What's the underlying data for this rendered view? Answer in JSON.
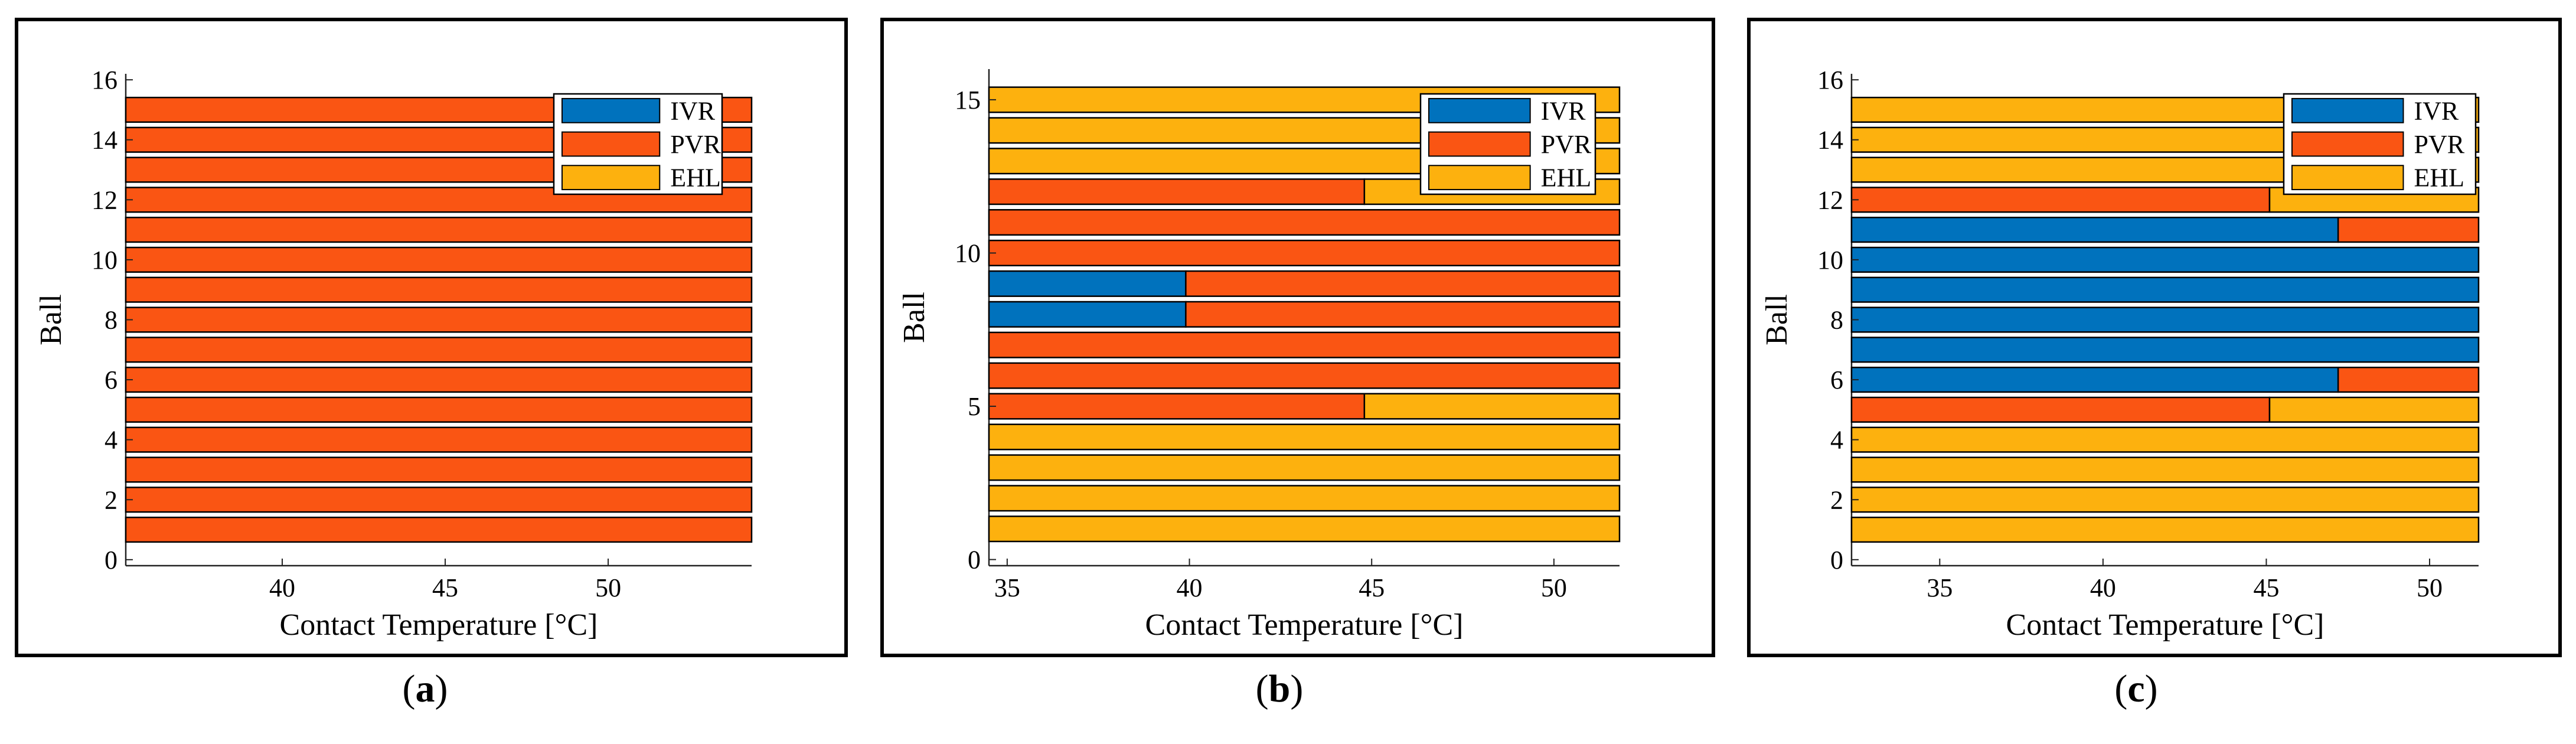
{
  "colors": {
    "IVR": "#0072BD",
    "PVR": "#FA5513",
    "EHL": "#FDB10E",
    "frame": "#000000",
    "background": "#ffffff"
  },
  "chart_data": [
    {
      "type": "bar",
      "orientation": "horizontal-stacked",
      "caption_open": "(",
      "caption_letter": "a",
      "caption_close": ")",
      "xlabel": "Contact Temperature [°C]",
      "ylabel": "Ball",
      "xlim": [
        35.2,
        54.4
      ],
      "ylim": [
        -0.2,
        16.2
      ],
      "xticks": [
        40,
        45,
        50
      ],
      "yticks": [
        0,
        2,
        4,
        6,
        8,
        10,
        12,
        14,
        16
      ],
      "legend": [
        "IVR",
        "PVR",
        "EHL"
      ],
      "legend_position": "top-right",
      "balls": [
        {
          "ball": 1,
          "IVR": 0,
          "PVR": 19.2,
          "EHL": 0
        },
        {
          "ball": 2,
          "IVR": 0,
          "PVR": 19.2,
          "EHL": 0
        },
        {
          "ball": 3,
          "IVR": 0,
          "PVR": 19.2,
          "EHL": 0
        },
        {
          "ball": 4,
          "IVR": 0,
          "PVR": 19.2,
          "EHL": 0
        },
        {
          "ball": 5,
          "IVR": 0,
          "PVR": 19.2,
          "EHL": 0
        },
        {
          "ball": 6,
          "IVR": 0,
          "PVR": 19.2,
          "EHL": 0
        },
        {
          "ball": 7,
          "IVR": 0,
          "PVR": 19.2,
          "EHL": 0
        },
        {
          "ball": 8,
          "IVR": 0,
          "PVR": 19.2,
          "EHL": 0
        },
        {
          "ball": 9,
          "IVR": 0,
          "PVR": 19.2,
          "EHL": 0
        },
        {
          "ball": 10,
          "IVR": 0,
          "PVR": 19.2,
          "EHL": 0
        },
        {
          "ball": 11,
          "IVR": 0,
          "PVR": 19.2,
          "EHL": 0
        },
        {
          "ball": 12,
          "IVR": 0,
          "PVR": 19.2,
          "EHL": 0
        },
        {
          "ball": 13,
          "IVR": 0,
          "PVR": 19.2,
          "EHL": 0
        },
        {
          "ball": 14,
          "IVR": 0,
          "PVR": 19.2,
          "EHL": 0
        },
        {
          "ball": 15,
          "IVR": 0,
          "PVR": 19.2,
          "EHL": 0
        }
      ]
    },
    {
      "type": "bar",
      "orientation": "horizontal-stacked",
      "caption_open": "(",
      "caption_letter": "b",
      "caption_close": ")",
      "xlabel": "Contact Temperature [°C]",
      "ylabel": "Ball",
      "xlim": [
        34.5,
        51.8
      ],
      "ylim": [
        -0.2,
        16.0
      ],
      "xticks": [
        35,
        40,
        45,
        50
      ],
      "yticks": [
        0,
        5,
        10,
        15
      ],
      "legend": [
        "IVR",
        "PVR",
        "EHL"
      ],
      "legend_position": "top-right",
      "balls": [
        {
          "ball": 1,
          "IVR": 0,
          "PVR": 0,
          "EHL": 17.3
        },
        {
          "ball": 2,
          "IVR": 0,
          "PVR": 0,
          "EHL": 17.3
        },
        {
          "ball": 3,
          "IVR": 0,
          "PVR": 0,
          "EHL": 17.3
        },
        {
          "ball": 4,
          "IVR": 0,
          "PVR": 0,
          "EHL": 17.3
        },
        {
          "ball": 5,
          "IVR": 0,
          "PVR": 10.3,
          "EHL": 7.0
        },
        {
          "ball": 6,
          "IVR": 0,
          "PVR": 17.3,
          "EHL": 0
        },
        {
          "ball": 7,
          "IVR": 0,
          "PVR": 17.3,
          "EHL": 0
        },
        {
          "ball": 8,
          "IVR": 5.4,
          "PVR": 11.9,
          "EHL": 0
        },
        {
          "ball": 9,
          "IVR": 5.4,
          "PVR": 11.9,
          "EHL": 0
        },
        {
          "ball": 10,
          "IVR": 0,
          "PVR": 17.3,
          "EHL": 0
        },
        {
          "ball": 11,
          "IVR": 0,
          "PVR": 17.3,
          "EHL": 0
        },
        {
          "ball": 12,
          "IVR": 0,
          "PVR": 10.3,
          "EHL": 7.0
        },
        {
          "ball": 13,
          "IVR": 0,
          "PVR": 0,
          "EHL": 17.3
        },
        {
          "ball": 14,
          "IVR": 0,
          "PVR": 0,
          "EHL": 17.3
        },
        {
          "ball": 15,
          "IVR": 0,
          "PVR": 0,
          "EHL": 17.3
        }
      ]
    },
    {
      "type": "bar",
      "orientation": "horizontal-stacked",
      "caption_open": "(",
      "caption_letter": "c",
      "caption_close": ")",
      "xlabel": "Contact Temperature [°C]",
      "ylabel": "Ball",
      "xlim": [
        32.3,
        51.5
      ],
      "ylim": [
        -0.2,
        16.2
      ],
      "xticks": [
        35,
        40,
        45,
        50
      ],
      "yticks": [
        0,
        2,
        4,
        6,
        8,
        10,
        12,
        14,
        16
      ],
      "legend": [
        "IVR",
        "PVR",
        "EHL"
      ],
      "legend_position": "top-right",
      "balls": [
        {
          "ball": 1,
          "IVR": 0,
          "PVR": 0,
          "EHL": 19.2
        },
        {
          "ball": 2,
          "IVR": 0,
          "PVR": 0,
          "EHL": 19.2
        },
        {
          "ball": 3,
          "IVR": 0,
          "PVR": 0,
          "EHL": 19.2
        },
        {
          "ball": 4,
          "IVR": 0,
          "PVR": 0,
          "EHL": 19.2
        },
        {
          "ball": 5,
          "IVR": 0,
          "PVR": 12.8,
          "EHL": 6.4
        },
        {
          "ball": 6,
          "IVR": 14.9,
          "PVR": 4.3,
          "EHL": 0
        },
        {
          "ball": 7,
          "IVR": 19.2,
          "PVR": 0,
          "EHL": 0
        },
        {
          "ball": 8,
          "IVR": 19.2,
          "PVR": 0,
          "EHL": 0
        },
        {
          "ball": 9,
          "IVR": 19.2,
          "PVR": 0,
          "EHL": 0
        },
        {
          "ball": 10,
          "IVR": 19.2,
          "PVR": 0,
          "EHL": 0
        },
        {
          "ball": 11,
          "IVR": 14.9,
          "PVR": 4.3,
          "EHL": 0
        },
        {
          "ball": 12,
          "IVR": 0,
          "PVR": 12.8,
          "EHL": 6.4
        },
        {
          "ball": 13,
          "IVR": 0,
          "PVR": 0,
          "EHL": 19.2
        },
        {
          "ball": 14,
          "IVR": 0,
          "PVR": 0,
          "EHL": 19.2
        },
        {
          "ball": 15,
          "IVR": 0,
          "PVR": 0,
          "EHL": 19.2
        }
      ]
    }
  ]
}
